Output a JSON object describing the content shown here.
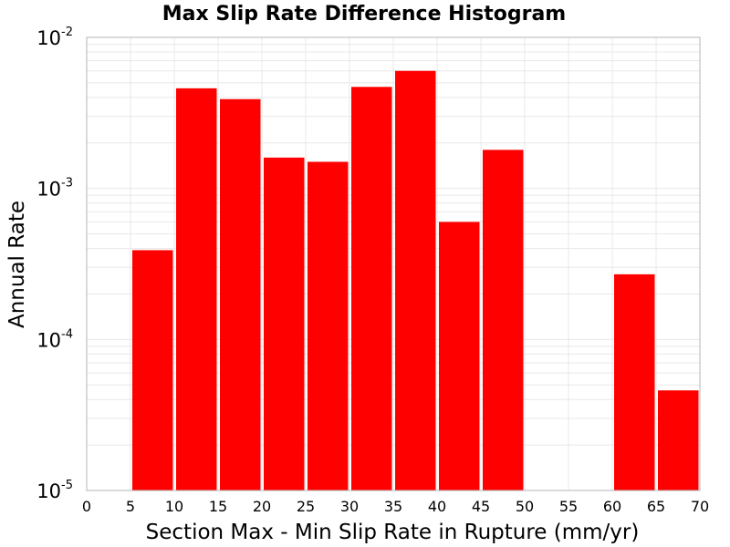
{
  "chart_data": {
    "type": "bar",
    "title": "Max Slip Rate Difference Histogram",
    "xlabel": "Section Max - Min Slip Rate in Rupture (mm/yr)",
    "ylabel": "Annual Rate",
    "y_scale": "log",
    "xlim": [
      0,
      70
    ],
    "ylim": [
      1e-05,
      0.01
    ],
    "x_ticks": [
      "0",
      "5",
      "10",
      "15",
      "20",
      "25",
      "30",
      "35",
      "40",
      "45",
      "50",
      "55",
      "60",
      "65",
      "70"
    ],
    "y_ticks": [
      {
        "base": "10",
        "exp": "-5"
      },
      {
        "base": "10",
        "exp": "-4"
      },
      {
        "base": "10",
        "exp": "-3"
      },
      {
        "base": "10",
        "exp": "-2"
      }
    ],
    "bin_width": 5,
    "bars": [
      {
        "x_start": 5,
        "x_end": 10,
        "value": 0.00039
      },
      {
        "x_start": 10,
        "x_end": 15,
        "value": 0.0046
      },
      {
        "x_start": 15,
        "x_end": 20,
        "value": 0.0039
      },
      {
        "x_start": 20,
        "x_end": 25,
        "value": 0.0016
      },
      {
        "x_start": 25,
        "x_end": 30,
        "value": 0.0015
      },
      {
        "x_start": 30,
        "x_end": 35,
        "value": 0.0047
      },
      {
        "x_start": 35,
        "x_end": 40,
        "value": 0.006
      },
      {
        "x_start": 40,
        "x_end": 45,
        "value": 0.0006
      },
      {
        "x_start": 45,
        "x_end": 50,
        "value": 0.0018
      },
      {
        "x_start": 60,
        "x_end": 65,
        "value": 0.00027
      },
      {
        "x_start": 65,
        "x_end": 70,
        "value": 4.6e-05
      }
    ],
    "bar_color": "#ff0000",
    "grid": true,
    "grid_color": "#e8e8e8",
    "legend": "none"
  }
}
